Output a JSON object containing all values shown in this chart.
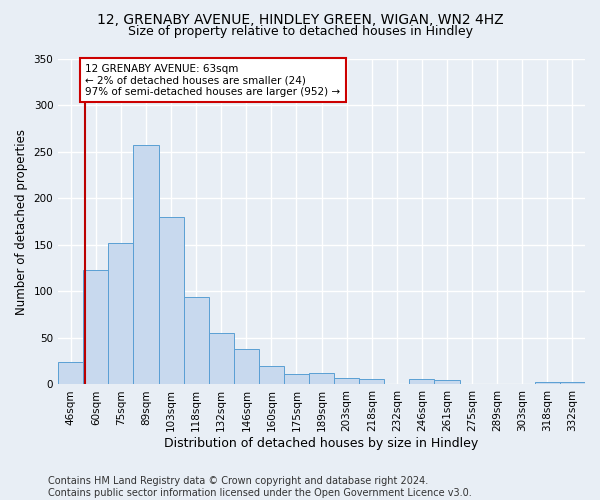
{
  "title1": "12, GRENABY AVENUE, HINDLEY GREEN, WIGAN, WN2 4HZ",
  "title2": "Size of property relative to detached houses in Hindley",
  "xlabel": "Distribution of detached houses by size in Hindley",
  "ylabel": "Number of detached properties",
  "categories": [
    "46sqm",
    "60sqm",
    "75sqm",
    "89sqm",
    "103sqm",
    "118sqm",
    "132sqm",
    "146sqm",
    "160sqm",
    "175sqm",
    "189sqm",
    "203sqm",
    "218sqm",
    "232sqm",
    "246sqm",
    "261sqm",
    "275sqm",
    "289sqm",
    "303sqm",
    "318sqm",
    "332sqm"
  ],
  "values": [
    24,
    123,
    152,
    257,
    180,
    94,
    55,
    38,
    20,
    11,
    12,
    7,
    6,
    0,
    6,
    5,
    0,
    0,
    0,
    3,
    3
  ],
  "bar_color": "#c8d9ee",
  "bar_edge_color": "#5a9fd4",
  "vline_x": 0.575,
  "vline_color": "#bb0000",
  "annotation_text": "12 GRENABY AVENUE: 63sqm\n← 2% of detached houses are smaller (24)\n97% of semi-detached houses are larger (952) →",
  "annotation_box_color": "white",
  "annotation_box_edge_color": "#cc0000",
  "ylim": [
    0,
    350
  ],
  "yticks": [
    0,
    50,
    100,
    150,
    200,
    250,
    300,
    350
  ],
  "footnote": "Contains HM Land Registry data © Crown copyright and database right 2024.\nContains public sector information licensed under the Open Government Licence v3.0.",
  "bg_color": "#e8eef5",
  "grid_color": "#ffffff",
  "title1_fontsize": 10,
  "title2_fontsize": 9,
  "xlabel_fontsize": 9,
  "ylabel_fontsize": 8.5,
  "tick_fontsize": 7.5,
  "footnote_fontsize": 7,
  "annot_fontsize": 7.5
}
